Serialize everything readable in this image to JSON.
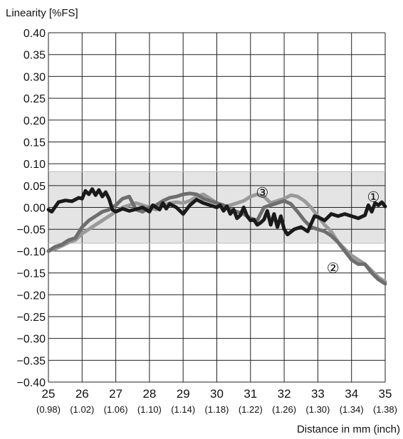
{
  "chart_data": {
    "type": "line",
    "ylabel": "Linearity [%FS]",
    "xlabel": "Distance in mm (inch)",
    "xlim": [
      25,
      35
    ],
    "ylim": [
      -0.4,
      0.4
    ],
    "y_ticks": [
      "0.40",
      "0.35",
      "0.30",
      "0.25",
      "0.20",
      "0.15",
      "0.10",
      "0.05",
      "0.00",
      "−0.05",
      "−0.10",
      "−0.15",
      "−0.20",
      "−0.25",
      "−0.30",
      "−0.35",
      "−0.40"
    ],
    "x_ticks": [
      "25",
      "26",
      "27",
      "28",
      "29",
      "30",
      "31",
      "32",
      "33",
      "34",
      "35"
    ],
    "x_subticks": [
      "(0.98)",
      "(1.02)",
      "(1.06)",
      "(1.10)",
      "(1.14)",
      "(1.18)",
      "(1.22)",
      "(1.26)",
      "(1.30)",
      "(1.34)",
      "(1.38)"
    ],
    "grid": true,
    "tolerance_band": [
      -0.082,
      0.082
    ],
    "colors": {
      "series1": "#1a1a1a",
      "series2": "#6e6e6e",
      "series3": "#9a9a9a",
      "band": "#e4e4e4"
    },
    "series": [
      {
        "marker": "①",
        "x": [
          25.0,
          25.1,
          25.3,
          25.5,
          25.7,
          25.9,
          26.0,
          26.1,
          26.2,
          26.3,
          26.4,
          26.5,
          26.6,
          26.7,
          26.8,
          26.9,
          27.0,
          27.2,
          27.4,
          27.6,
          27.8,
          28.0,
          28.1,
          28.2,
          28.3,
          28.4,
          28.5,
          28.6,
          28.8,
          29.0,
          29.2,
          29.4,
          29.6,
          29.8,
          30.0,
          30.1,
          30.2,
          30.3,
          30.4,
          30.5,
          30.6,
          30.7,
          30.8,
          30.9,
          31.0,
          31.1,
          31.2,
          31.3,
          31.4,
          31.5,
          31.6,
          31.7,
          31.8,
          31.9,
          32.0,
          32.1,
          32.3,
          32.5,
          32.7,
          32.9,
          33.0,
          33.2,
          33.4,
          33.6,
          33.8,
          34.0,
          34.2,
          34.4,
          34.5,
          34.6,
          34.7,
          34.8,
          34.9,
          35.0
        ],
        "y": [
          -0.005,
          -0.01,
          0.012,
          0.016,
          0.014,
          0.022,
          0.02,
          0.038,
          0.03,
          0.042,
          0.028,
          0.04,
          0.025,
          0.035,
          0.02,
          -0.005,
          -0.01,
          -0.003,
          -0.008,
          -0.004,
          0.0,
          -0.01,
          0.005,
          0.0,
          -0.005,
          0.01,
          -0.003,
          0.008,
          0.0,
          -0.015,
          0.005,
          0.018,
          0.01,
          0.005,
          0.0,
          0.005,
          -0.008,
          0.003,
          -0.015,
          -0.005,
          -0.025,
          -0.018,
          0.0,
          -0.02,
          -0.03,
          -0.028,
          -0.04,
          -0.035,
          -0.028,
          -0.008,
          -0.04,
          -0.015,
          -0.045,
          -0.02,
          -0.05,
          -0.062,
          -0.05,
          -0.045,
          -0.055,
          -0.02,
          -0.022,
          -0.03,
          -0.015,
          -0.02,
          -0.015,
          -0.02,
          -0.025,
          -0.018,
          0.005,
          -0.01,
          0.01,
          0.005,
          0.012,
          0.002
        ]
      },
      {
        "marker": "②",
        "x": [
          25.0,
          25.2,
          25.4,
          25.6,
          25.8,
          26.0,
          26.2,
          26.4,
          26.6,
          26.8,
          27.0,
          27.2,
          27.4,
          27.6,
          27.8,
          28.0,
          28.2,
          28.4,
          28.6,
          28.8,
          29.0,
          29.2,
          29.4,
          29.6,
          29.8,
          30.0,
          30.2,
          30.4,
          30.6,
          30.8,
          31.0,
          31.2,
          31.4,
          31.6,
          31.8,
          32.0,
          32.2,
          32.4,
          32.6,
          32.8,
          33.0,
          33.2,
          33.4,
          33.6,
          33.8,
          34.0,
          34.2,
          34.4,
          34.6,
          34.8,
          35.0
        ],
        "y": [
          -0.1,
          -0.09,
          -0.085,
          -0.075,
          -0.07,
          -0.045,
          -0.03,
          -0.02,
          -0.01,
          -0.005,
          0.005,
          0.02,
          0.025,
          -0.005,
          -0.01,
          0.0,
          0.005,
          0.015,
          0.022,
          0.025,
          0.03,
          0.032,
          0.03,
          0.02,
          0.015,
          0.01,
          0.005,
          -0.005,
          -0.01,
          -0.015,
          -0.025,
          -0.03,
          0.0,
          0.005,
          0.01,
          0.015,
          0.008,
          -0.01,
          -0.03,
          -0.045,
          -0.05,
          -0.055,
          -0.065,
          -0.08,
          -0.1,
          -0.12,
          -0.13,
          -0.13,
          -0.15,
          -0.165,
          -0.175
        ]
      },
      {
        "marker": "③",
        "x": [
          25.0,
          25.2,
          25.4,
          25.6,
          25.8,
          26.0,
          26.2,
          26.4,
          26.6,
          26.8,
          27.0,
          27.2,
          27.4,
          27.6,
          27.8,
          28.0,
          28.2,
          28.4,
          28.6,
          28.8,
          29.0,
          29.2,
          29.4,
          29.6,
          29.8,
          30.0,
          30.2,
          30.4,
          30.6,
          30.8,
          31.0,
          31.2,
          31.4,
          31.6,
          31.8,
          32.0,
          32.2,
          32.4,
          32.6,
          32.8,
          33.0,
          33.2,
          33.4,
          33.6,
          33.8,
          34.0,
          34.2,
          34.4,
          34.6,
          34.8,
          35.0
        ],
        "y": [
          -0.1,
          -0.095,
          -0.088,
          -0.08,
          -0.075,
          -0.06,
          -0.05,
          -0.04,
          -0.03,
          -0.02,
          -0.01,
          0.0,
          0.005,
          0.01,
          0.005,
          0.0,
          -0.005,
          0.005,
          0.01,
          0.012,
          0.01,
          0.015,
          0.025,
          0.03,
          0.02,
          0.01,
          0.0,
          0.005,
          0.01,
          0.015,
          0.025,
          0.03,
          0.025,
          0.01,
          0.015,
          0.02,
          0.028,
          0.025,
          0.015,
          0.0,
          -0.02,
          -0.04,
          -0.055,
          -0.08,
          -0.095,
          -0.11,
          -0.12,
          -0.13,
          -0.145,
          -0.16,
          -0.17
        ]
      }
    ],
    "marker_labels": [
      {
        "text": "①",
        "x": 34.65,
        "y": 0.0245
      },
      {
        "text": "②",
        "x": 33.45,
        "y": -0.1385
      },
      {
        "text": "③",
        "x": 31.35,
        "y": 0.0345
      }
    ]
  }
}
